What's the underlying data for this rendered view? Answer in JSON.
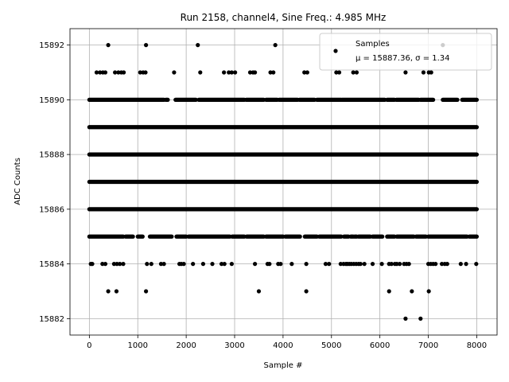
{
  "chart_data": {
    "type": "scatter",
    "title": "Run 2158, channel4, Sine Freq.: 4.985 MHz",
    "xlabel": "Sample #",
    "ylabel": "ADC Counts",
    "xlim": [
      -400,
      8420
    ],
    "ylim": [
      15881.4,
      15892.6
    ],
    "xticks": [
      0,
      1000,
      2000,
      3000,
      4000,
      5000,
      6000,
      7000,
      8000
    ],
    "yticks": [
      15882,
      15884,
      15886,
      15888,
      15890,
      15892
    ],
    "grid": true,
    "legend": {
      "placement": "top-right",
      "entries": [
        {
          "name": "Samples",
          "detail": "μ = 15887.36, σ = 1.34"
        }
      ]
    },
    "marker_color": "#000000",
    "series": [
      {
        "name": "Samples",
        "level_runs": [
          {
            "y": 15890,
            "ranges": [
              [
                0,
                1540
              ],
              [
                1580,
                1620
              ],
              [
                1780,
                2200
              ],
              [
                2260,
                3200
              ],
              [
                3240,
                3600
              ],
              [
                3650,
                3880
              ],
              [
                3920,
                4300
              ],
              [
                4340,
                4650
              ],
              [
                4700,
                5200
              ],
              [
                5220,
                6100
              ],
              [
                6150,
                6300
              ],
              [
                6340,
                6800
              ],
              [
                6840,
                7100
              ],
              [
                7300,
                7600
              ],
              [
                7700,
                8000
              ]
            ]
          },
          {
            "y": 15889,
            "ranges": [
              [
                0,
                8000
              ]
            ]
          },
          {
            "y": 15888,
            "ranges": [
              [
                0,
                8000
              ]
            ]
          },
          {
            "y": 15887,
            "ranges": [
              [
                0,
                8000
              ]
            ]
          },
          {
            "y": 15886,
            "ranges": [
              [
                0,
                8000
              ]
            ]
          },
          {
            "y": 15885,
            "ranges": [
              [
                0,
                700
              ],
              [
                750,
                900
              ],
              [
                1000,
                1100
              ],
              [
                1250,
                1700
              ],
              [
                1800,
                2000
              ],
              [
                2050,
                2900
              ],
              [
                2950,
                3200
              ],
              [
                3250,
                3600
              ],
              [
                3650,
                4000
              ],
              [
                4050,
                4350
              ],
              [
                4450,
                4700
              ],
              [
                4750,
                5200
              ],
              [
                5260,
                5350
              ],
              [
                5400,
                5450
              ],
              [
                5480,
                5520
              ],
              [
                5560,
                5800
              ],
              [
                5850,
                6050
              ],
              [
                6150,
                6300
              ],
              [
                6350,
                6700
              ],
              [
                6750,
                6950
              ],
              [
                7000,
                7800
              ],
              [
                7850,
                8000
              ]
            ]
          }
        ],
        "points": [
          [
            390,
            15892
          ],
          [
            1170,
            15892
          ],
          [
            2240,
            15892
          ],
          [
            3840,
            15892
          ],
          [
            7300,
            15892
          ],
          [
            150,
            15891
          ],
          [
            220,
            15891
          ],
          [
            280,
            15891
          ],
          [
            330,
            15891
          ],
          [
            530,
            15891
          ],
          [
            600,
            15891
          ],
          [
            660,
            15891
          ],
          [
            710,
            15891
          ],
          [
            1050,
            15891
          ],
          [
            1110,
            15891
          ],
          [
            1160,
            15891
          ],
          [
            1750,
            15891
          ],
          [
            2290,
            15891
          ],
          [
            2780,
            15891
          ],
          [
            2880,
            15891
          ],
          [
            2940,
            15891
          ],
          [
            3010,
            15891
          ],
          [
            3320,
            15891
          ],
          [
            3380,
            15891
          ],
          [
            3420,
            15891
          ],
          [
            3740,
            15891
          ],
          [
            3800,
            15891
          ],
          [
            4440,
            15891
          ],
          [
            4500,
            15891
          ],
          [
            5100,
            15891
          ],
          [
            5160,
            15891
          ],
          [
            5450,
            15891
          ],
          [
            5520,
            15891
          ],
          [
            6530,
            15891
          ],
          [
            6900,
            15891
          ],
          [
            7010,
            15891
          ],
          [
            7060,
            15891
          ],
          [
            30,
            15884
          ],
          [
            60,
            15884
          ],
          [
            270,
            15884
          ],
          [
            330,
            15884
          ],
          [
            510,
            15884
          ],
          [
            570,
            15884
          ],
          [
            630,
            15884
          ],
          [
            700,
            15884
          ],
          [
            1190,
            15884
          ],
          [
            1280,
            15884
          ],
          [
            1480,
            15884
          ],
          [
            1540,
            15884
          ],
          [
            1860,
            15884
          ],
          [
            1900,
            15884
          ],
          [
            1950,
            15884
          ],
          [
            2140,
            15884
          ],
          [
            2350,
            15884
          ],
          [
            2540,
            15884
          ],
          [
            2730,
            15884
          ],
          [
            2790,
            15884
          ],
          [
            2940,
            15884
          ],
          [
            3420,
            15884
          ],
          [
            3680,
            15884
          ],
          [
            3720,
            15884
          ],
          [
            3900,
            15884
          ],
          [
            3950,
            15884
          ],
          [
            4180,
            15884
          ],
          [
            4480,
            15884
          ],
          [
            4880,
            15884
          ],
          [
            4950,
            15884
          ],
          [
            5190,
            15884
          ],
          [
            5250,
            15884
          ],
          [
            5300,
            15884
          ],
          [
            5330,
            15884
          ],
          [
            5370,
            15884
          ],
          [
            5410,
            15884
          ],
          [
            5460,
            15884
          ],
          [
            5510,
            15884
          ],
          [
            5560,
            15884
          ],
          [
            5600,
            15884
          ],
          [
            5680,
            15884
          ],
          [
            5850,
            15884
          ],
          [
            6040,
            15884
          ],
          [
            6190,
            15884
          ],
          [
            6240,
            15884
          ],
          [
            6310,
            15884
          ],
          [
            6350,
            15884
          ],
          [
            6410,
            15884
          ],
          [
            6500,
            15884
          ],
          [
            6550,
            15884
          ],
          [
            6600,
            15884
          ],
          [
            7000,
            15884
          ],
          [
            7050,
            15884
          ],
          [
            7100,
            15884
          ],
          [
            7150,
            15884
          ],
          [
            7280,
            15884
          ],
          [
            7340,
            15884
          ],
          [
            7390,
            15884
          ],
          [
            7670,
            15884
          ],
          [
            7780,
            15884
          ],
          [
            7990,
            15884
          ],
          [
            390,
            15883
          ],
          [
            560,
            15883
          ],
          [
            1170,
            15883
          ],
          [
            3500,
            15883
          ],
          [
            4480,
            15883
          ],
          [
            6190,
            15883
          ],
          [
            6660,
            15883
          ],
          [
            7010,
            15883
          ],
          [
            6530,
            15882
          ],
          [
            6840,
            15882
          ]
        ]
      }
    ]
  }
}
